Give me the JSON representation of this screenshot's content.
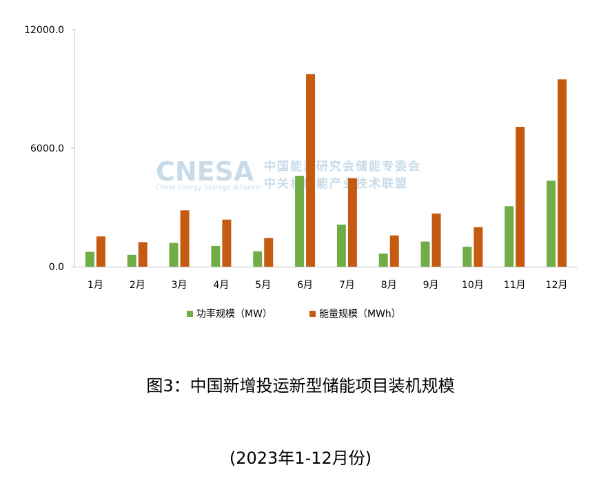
{
  "chart_data": {
    "type": "bar",
    "categories": [
      "1月",
      "2月",
      "3月",
      "4月",
      "5月",
      "6月",
      "7月",
      "8月",
      "9月",
      "10月",
      "11月",
      "12月"
    ],
    "series": [
      {
        "name": "功率规模（MW）",
        "color": "#70ad47",
        "values": [
          750,
          600,
          1200,
          1050,
          780,
          4600,
          2130,
          660,
          1270,
          1010,
          3060,
          4350
        ]
      },
      {
        "name": "能量规模（MWh）",
        "color": "#c55a11",
        "values": [
          1530,
          1240,
          2850,
          2380,
          1450,
          9750,
          4480,
          1580,
          2690,
          2000,
          7080,
          9480
        ]
      }
    ],
    "yticks": [
      "0.0",
      "6000.0",
      "12000.0"
    ],
    "ylim": [
      0,
      12000
    ],
    "grid": false,
    "legend_position": "bottom"
  },
  "watermark": {
    "logo": "CNESA",
    "logo_sub": "China Energy Storage Alliance",
    "line1": "中国能源研究会储能专委会",
    "line2": "中关村储能产业技术联盟"
  },
  "caption": {
    "title": "图3：中国新增投运新型储能项目装机规模",
    "subtitle": "(2023年1-12月份)"
  }
}
